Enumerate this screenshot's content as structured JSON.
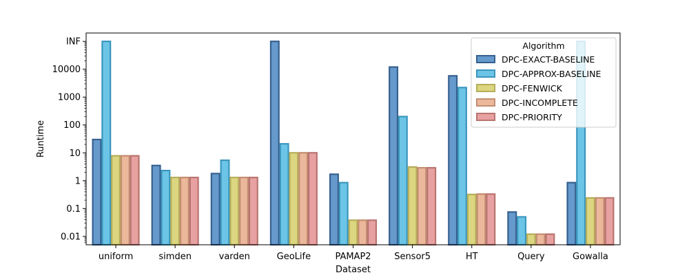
{
  "chart_data": {
    "type": "bar",
    "xlabel": "Dataset",
    "ylabel": "Runtime",
    "yscale": "log",
    "ylim": [
      0.005,
      200000
    ],
    "y_ticks": [
      0.01,
      0.1,
      1,
      10,
      100,
      1000,
      10000,
      100000
    ],
    "y_tick_labels": [
      "0.01",
      "0.1",
      "1",
      "10",
      "100",
      "1000",
      "10000",
      "INF"
    ],
    "categories": [
      "uniform",
      "simden",
      "varden",
      "GeoLife",
      "PAMAP2",
      "Sensor5",
      "HT",
      "Query",
      "Gowalla"
    ],
    "series": [
      {
        "name": "DPC-EXACT-BASELINE",
        "fill": "#6699cc",
        "edge": "#36608e",
        "values": [
          30,
          3.5,
          1.8,
          100000,
          1.7,
          12000,
          5800,
          0.075,
          0.85
        ]
      },
      {
        "name": "DPC-APPROX-BASELINE",
        "fill": "#6cc5e6",
        "edge": "#3a96bd",
        "values": [
          100000,
          2.3,
          5.4,
          21,
          0.85,
          200,
          2200,
          0.05,
          100000
        ]
      },
      {
        "name": "DPC-FENWICK",
        "fill": "#dcd680",
        "edge": "#b5ad5a",
        "values": [
          7.8,
          1.3,
          1.3,
          10,
          0.038,
          3.1,
          0.32,
          0.012,
          0.24
        ]
      },
      {
        "name": "DPC-INCOMPLETE",
        "fill": "#ebb89c",
        "edge": "#c48c70",
        "values": [
          7.8,
          1.3,
          1.3,
          10,
          0.038,
          2.9,
          0.33,
          0.012,
          0.24
        ]
      },
      {
        "name": "DPC-PRIORITY",
        "fill": "#e7a1a0",
        "edge": "#b87470",
        "values": [
          7.8,
          1.3,
          1.3,
          10,
          0.038,
          2.9,
          0.33,
          0.012,
          0.24
        ]
      }
    ],
    "legend": {
      "title": "Algorithm",
      "position": "top-right"
    },
    "grid": false
  }
}
